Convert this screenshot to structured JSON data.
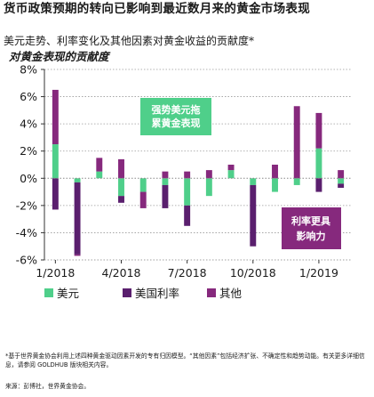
{
  "title": "货币政策预期的转向已影响到最近数月来的黄金市场表现",
  "subtitle": "美元走势、利率变化及其他因素对黄金收益的贡献度*",
  "subtitle2": "对黄金表现的贡献度",
  "note": "*基于世界黄金协会利用上述四种黄金驱动因素开发的专有归因模型。“其他因素”包括经济扩张、不确定性和趋势动能。有关更多详细信息，请参阅 GOLDHUB 版块相关内容。",
  "source": "来源：彭博社，世界黄金协会。",
  "colors": {
    "usd": "#4fcf8a",
    "rates": "#5a1f6e",
    "other": "#86297d",
    "callout_green": "#4fcf8a",
    "callout_purple": "#86297d",
    "axis": "#333333",
    "grid": "#999999"
  },
  "chart_data": {
    "type": "bar",
    "stacked": true,
    "ylim": [
      -6,
      8
    ],
    "yticks": [
      -6,
      -4,
      -2,
      0,
      2,
      4,
      6,
      8
    ],
    "ytick_labels": [
      "-6%",
      "-4%",
      "-2%",
      "0%",
      "2%",
      "4%",
      "6%",
      "8%"
    ],
    "x_tick_labels": [
      "1/2018",
      "4/2018",
      "7/2018",
      "10/2018",
      "1/2019"
    ],
    "x_tick_index": [
      0,
      3,
      6,
      9,
      12
    ],
    "categories": [
      "1/2018",
      "2/2018",
      "3/2018",
      "4/2018",
      "5/2018",
      "6/2018",
      "7/2018",
      "8/2018",
      "9/2018",
      "10/2018",
      "11/2018",
      "12/2018",
      "1/2019",
      "2/2019"
    ],
    "series": [
      {
        "name": "美元",
        "values": [
          2.5,
          -0.3,
          0.5,
          -1.3,
          -1.0,
          -0.5,
          -2.0,
          -1.3,
          0.6,
          -0.5,
          -1.0,
          -0.5,
          2.2,
          -0.4
        ]
      },
      {
        "name": "美国利率",
        "values": [
          -2.3,
          -5.3,
          0.0,
          -0.5,
          0.0,
          -1.7,
          -1.5,
          0.0,
          0.0,
          -4.5,
          0.0,
          0.0,
          -1.0,
          -0.3
        ]
      },
      {
        "name": "其他",
        "values": [
          4.0,
          -0.1,
          1.0,
          1.4,
          -1.2,
          0.5,
          0.5,
          0.6,
          0.4,
          0.0,
          1.0,
          5.3,
          2.6,
          0.6
        ]
      }
    ],
    "grid": true,
    "legend_position": "bottom",
    "annotations": [
      "强势美元拖累黄金表现",
      "利率更具影响力"
    ]
  }
}
